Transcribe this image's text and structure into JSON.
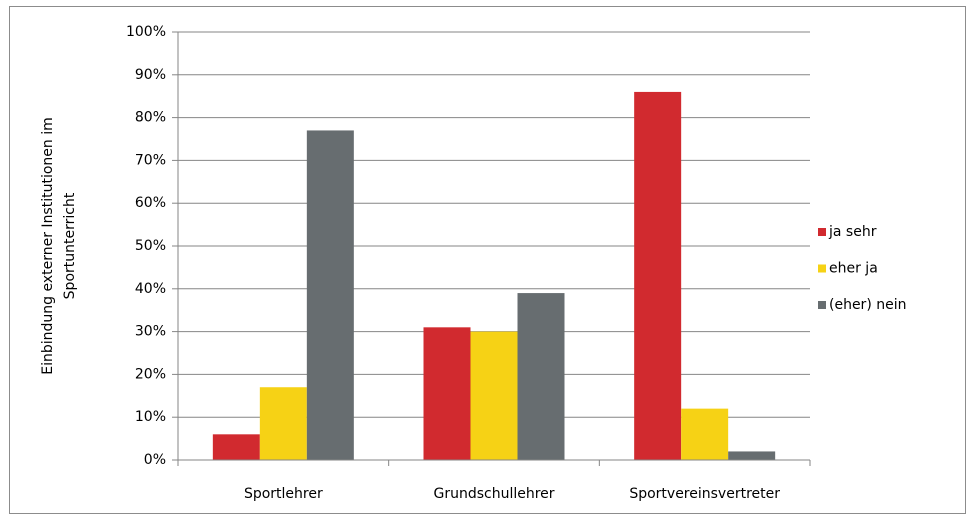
{
  "chart_data": {
    "type": "bar",
    "ylabel": [
      "Einbindung externer Institutionen im",
      "Sportunterricht"
    ],
    "categories": [
      "Sportlehrer",
      "Grundschullehrer",
      "Sportvereinsvertreter"
    ],
    "series": [
      {
        "name": "ja sehr",
        "color": "#d12a2f",
        "values": [
          6,
          31,
          86
        ]
      },
      {
        "name": "eher ja",
        "color": "#f6d215",
        "values": [
          17,
          30,
          12
        ]
      },
      {
        "name": "(eher) nein",
        "color": "#676d70",
        "values": [
          77,
          39,
          2
        ]
      }
    ],
    "ylim": [
      0,
      100
    ],
    "yticks": [
      {
        "value": 0,
        "label": "0%"
      },
      {
        "value": 10,
        "label": "10%"
      },
      {
        "value": 20,
        "label": "20%"
      },
      {
        "value": 30,
        "label": "30%"
      },
      {
        "value": 40,
        "label": "40%"
      },
      {
        "value": 50,
        "label": "50%"
      },
      {
        "value": 60,
        "label": "60%"
      },
      {
        "value": 70,
        "label": "70%"
      },
      {
        "value": 80,
        "label": "80%"
      },
      {
        "value": 90,
        "label": "90%"
      },
      {
        "value": 100,
        "label": "100%"
      }
    ],
    "grid": true,
    "legend": "right"
  }
}
